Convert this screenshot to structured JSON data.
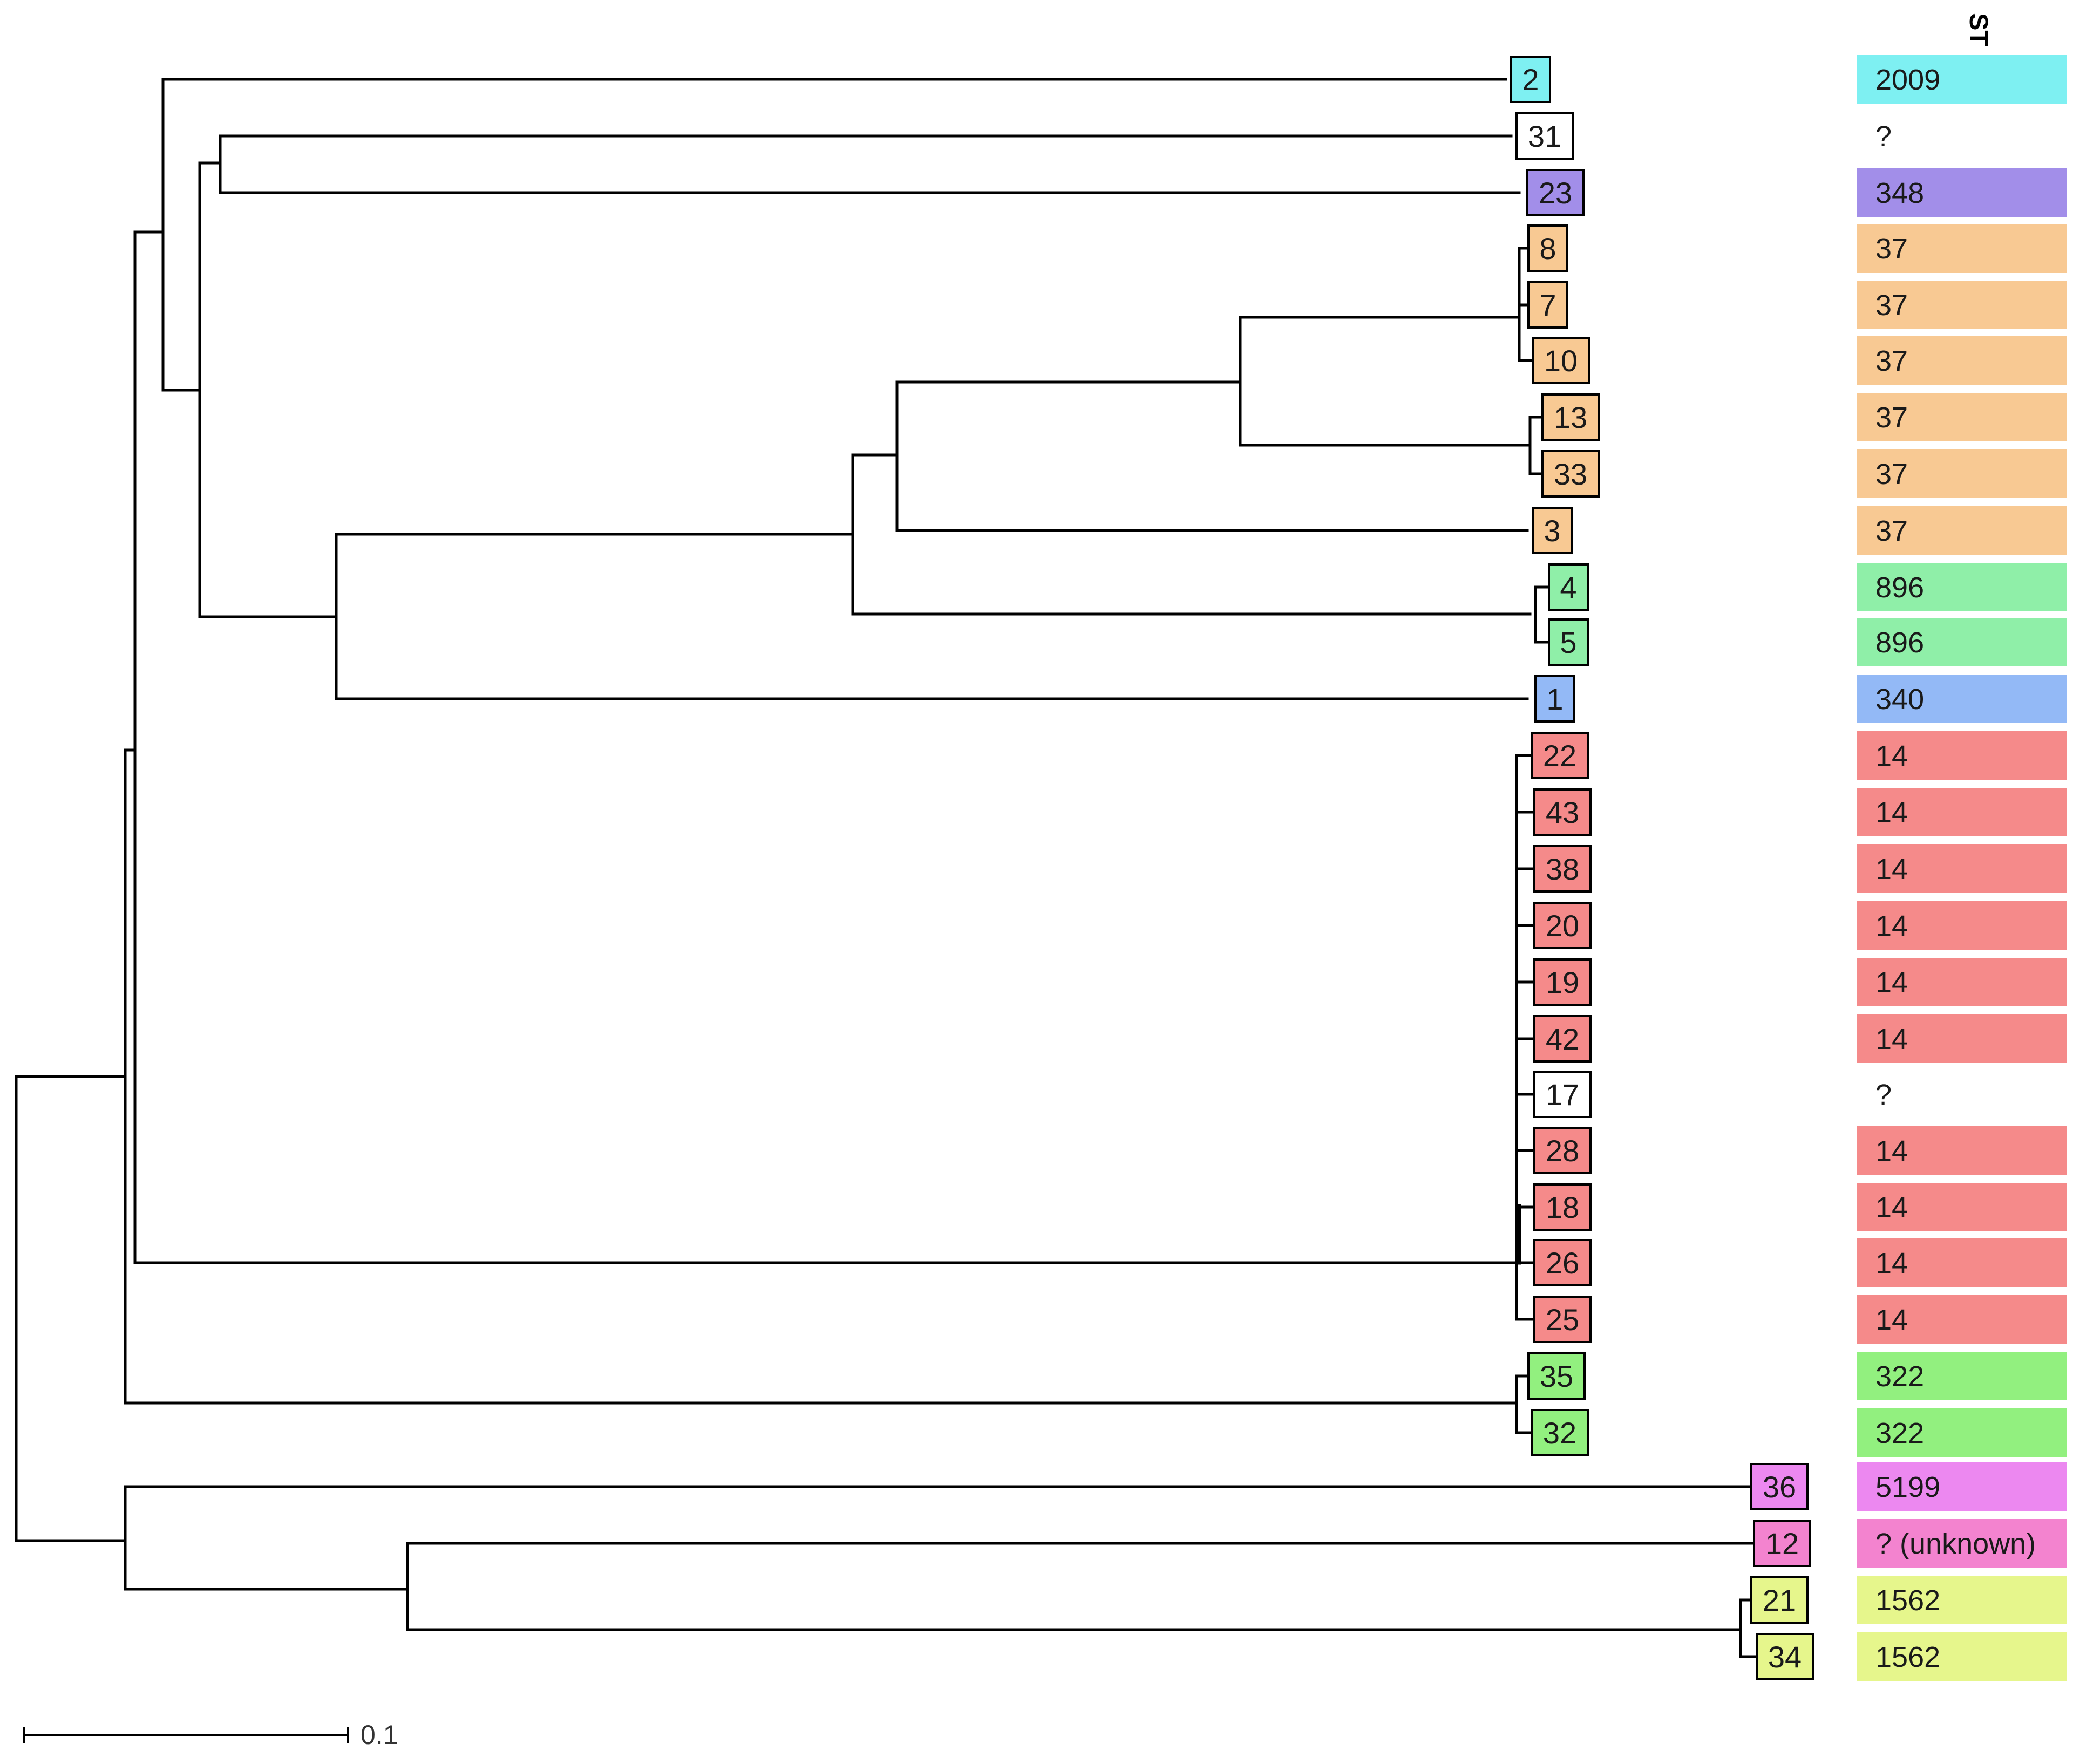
{
  "column_header": "ST",
  "scale_bar": {
    "label": "0.1",
    "value": 0.1
  },
  "colors": {
    "cyan": "#7ef0f2",
    "purple": "#a28ee9",
    "orange": "#f8c993",
    "green_light": "#8fefa8",
    "blue": "#93b9f6",
    "red": "#f58a8a",
    "green": "#92f07f",
    "magenta": "#ec88f0",
    "pink": "#f383cf",
    "yellow": "#e6f68c",
    "white": "#ffffff"
  },
  "leaves": [
    {
      "id": "2",
      "st": "2009",
      "color": "cyan"
    },
    {
      "id": "31",
      "st": "?",
      "color": "white"
    },
    {
      "id": "23",
      "st": "348",
      "color": "purple"
    },
    {
      "id": "8",
      "st": "37",
      "color": "orange"
    },
    {
      "id": "7",
      "st": "37",
      "color": "orange"
    },
    {
      "id": "10",
      "st": "37",
      "color": "orange"
    },
    {
      "id": "13",
      "st": "37",
      "color": "orange"
    },
    {
      "id": "33",
      "st": "37",
      "color": "orange"
    },
    {
      "id": "3",
      "st": "37",
      "color": "orange"
    },
    {
      "id": "4",
      "st": "896",
      "color": "green_light"
    },
    {
      "id": "5",
      "st": "896",
      "color": "green_light"
    },
    {
      "id": "1",
      "st": "340",
      "color": "blue"
    },
    {
      "id": "22",
      "st": "14",
      "color": "red"
    },
    {
      "id": "43",
      "st": "14",
      "color": "red"
    },
    {
      "id": "38",
      "st": "14",
      "color": "red"
    },
    {
      "id": "20",
      "st": "14",
      "color": "red"
    },
    {
      "id": "19",
      "st": "14",
      "color": "red"
    },
    {
      "id": "42",
      "st": "14",
      "color": "red"
    },
    {
      "id": "17",
      "st": "?",
      "color": "white"
    },
    {
      "id": "28",
      "st": "14",
      "color": "red"
    },
    {
      "id": "18",
      "st": "14",
      "color": "red"
    },
    {
      "id": "26",
      "st": "14",
      "color": "red"
    },
    {
      "id": "25",
      "st": "14",
      "color": "red"
    },
    {
      "id": "35",
      "st": "322",
      "color": "green"
    },
    {
      "id": "32",
      "st": "322",
      "color": "green"
    },
    {
      "id": "36",
      "st": "5199",
      "color": "magenta"
    },
    {
      "id": "12",
      "st": "? (unknown)",
      "color": "pink"
    },
    {
      "id": "21",
      "st": "1562",
      "color": "yellow"
    },
    {
      "id": "34",
      "st": "1562",
      "color": "yellow"
    }
  ]
}
